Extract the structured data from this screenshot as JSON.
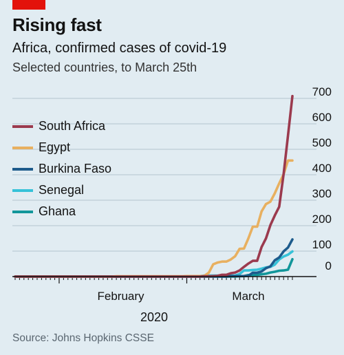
{
  "header": {
    "title": "Rising fast",
    "subtitle": "Africa, confirmed cases of covid-19",
    "note": "Selected countries, to March 25th"
  },
  "source": "Source: Johns Hopkins CSSE",
  "colors": {
    "brand_tag": "#e3120b",
    "background": "#e1ecf2",
    "gridline": "#b4c3cd",
    "axis": "#121212"
  },
  "chart_data": {
    "type": "line",
    "title": "Africa, confirmed cases of covid-19",
    "subtitle": "Selected countries, to March 25th",
    "xlabel": "2020",
    "ylabel": "",
    "ylim": [
      0,
      700
    ],
    "yticks": [
      0,
      100,
      200,
      300,
      400,
      500,
      600,
      700
    ],
    "x_tick_labels": [
      "February",
      "March"
    ],
    "x_year_label": "2020",
    "x": [
      "Jan 22",
      "Jan 23",
      "Jan 24",
      "Jan 25",
      "Jan 26",
      "Jan 27",
      "Jan 28",
      "Jan 29",
      "Jan 30",
      "Jan 31",
      "Feb 1",
      "Feb 2",
      "Feb 3",
      "Feb 4",
      "Feb 5",
      "Feb 6",
      "Feb 7",
      "Feb 8",
      "Feb 9",
      "Feb 10",
      "Feb 11",
      "Feb 12",
      "Feb 13",
      "Feb 14",
      "Feb 15",
      "Feb 16",
      "Feb 17",
      "Feb 18",
      "Feb 19",
      "Feb 20",
      "Feb 21",
      "Feb 22",
      "Feb 23",
      "Feb 24",
      "Feb 25",
      "Feb 26",
      "Feb 27",
      "Feb 28",
      "Feb 29",
      "Mar 1",
      "Mar 2",
      "Mar 3",
      "Mar 4",
      "Mar 5",
      "Mar 6",
      "Mar 7",
      "Mar 8",
      "Mar 9",
      "Mar 10",
      "Mar 11",
      "Mar 12",
      "Mar 13",
      "Mar 14",
      "Mar 15",
      "Mar 16",
      "Mar 17",
      "Mar 18",
      "Mar 19",
      "Mar 20",
      "Mar 21",
      "Mar 22",
      "Mar 23",
      "Mar 24",
      "Mar 25"
    ],
    "grid": true,
    "legend_position": "top-left",
    "series": [
      {
        "name": "South Africa",
        "color": "#9b3a4e",
        "values": [
          0,
          0,
          0,
          0,
          0,
          0,
          0,
          0,
          0,
          0,
          0,
          0,
          0,
          0,
          0,
          0,
          0,
          0,
          0,
          0,
          0,
          0,
          0,
          0,
          0,
          0,
          0,
          0,
          0,
          0,
          0,
          0,
          0,
          0,
          0,
          0,
          0,
          0,
          0,
          0,
          0,
          0,
          0,
          1,
          1,
          2,
          3,
          7,
          7,
          13,
          16,
          24,
          38,
          51,
          62,
          62,
          116,
          150,
          202,
          240,
          274,
          402,
          554,
          709
        ]
      },
      {
        "name": "Egypt",
        "color": "#e8b060",
        "values": [
          0,
          0,
          0,
          0,
          0,
          0,
          0,
          0,
          0,
          0,
          0,
          0,
          0,
          0,
          0,
          0,
          0,
          0,
          0,
          0,
          0,
          0,
          0,
          1,
          1,
          1,
          1,
          1,
          1,
          1,
          1,
          1,
          1,
          1,
          1,
          1,
          1,
          1,
          1,
          2,
          2,
          2,
          2,
          3,
          15,
          48,
          55,
          59,
          59,
          67,
          80,
          109,
          110,
          150,
          196,
          196,
          256,
          285,
          294,
          327,
          366,
          402,
          456,
          456
        ]
      },
      {
        "name": "Burkina Faso",
        "color": "#1d5b8c",
        "values": [
          0,
          0,
          0,
          0,
          0,
          0,
          0,
          0,
          0,
          0,
          0,
          0,
          0,
          0,
          0,
          0,
          0,
          0,
          0,
          0,
          0,
          0,
          0,
          0,
          0,
          0,
          0,
          0,
          0,
          0,
          0,
          0,
          0,
          0,
          0,
          0,
          0,
          0,
          0,
          0,
          0,
          0,
          0,
          0,
          0,
          0,
          0,
          0,
          0,
          2,
          2,
          2,
          2,
          3,
          15,
          15,
          20,
          33,
          40,
          64,
          75,
          99,
          114,
          146
        ]
      },
      {
        "name": "Senegal",
        "color": "#36c2d8",
        "values": [
          0,
          0,
          0,
          0,
          0,
          0,
          0,
          0,
          0,
          0,
          0,
          0,
          0,
          0,
          0,
          0,
          0,
          0,
          0,
          0,
          0,
          0,
          0,
          0,
          0,
          0,
          0,
          0,
          0,
          0,
          0,
          0,
          0,
          0,
          0,
          0,
          0,
          0,
          0,
          0,
          0,
          1,
          2,
          4,
          4,
          4,
          4,
          4,
          4,
          4,
          4,
          10,
          24,
          24,
          26,
          27,
          31,
          36,
          38,
          47,
          67,
          79,
          86,
          99
        ]
      },
      {
        "name": "Ghana",
        "color": "#12969a",
        "values": [
          0,
          0,
          0,
          0,
          0,
          0,
          0,
          0,
          0,
          0,
          0,
          0,
          0,
          0,
          0,
          0,
          0,
          0,
          0,
          0,
          0,
          0,
          0,
          0,
          0,
          0,
          0,
          0,
          0,
          0,
          0,
          0,
          0,
          0,
          0,
          0,
          0,
          0,
          0,
          0,
          0,
          0,
          0,
          0,
          0,
          0,
          0,
          0,
          0,
          0,
          0,
          2,
          2,
          6,
          6,
          7,
          9,
          11,
          16,
          19,
          23,
          24,
          27,
          68
        ]
      }
    ]
  }
}
